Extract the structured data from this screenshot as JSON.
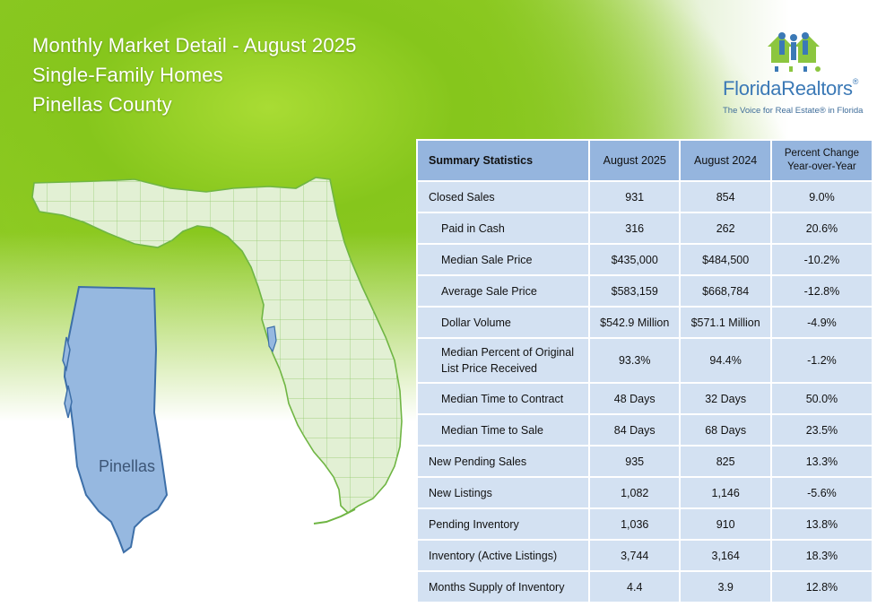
{
  "header": {
    "title_line1": "Monthly Market Detail - August 2025",
    "title_line2": "Single-Family Homes",
    "title_line3": "Pinellas County"
  },
  "logo": {
    "name_part1": "Florida",
    "name_part2": "Realtors",
    "tagline": "The Voice for Real Estate® in Florida",
    "colors": {
      "blue": "#3b79b6",
      "green": "#8cc63f"
    }
  },
  "map": {
    "county_label": "Pinellas",
    "highlight_color": "#96b8e0",
    "state_fill": "#e2f0d4",
    "state_stroke": "#6fb543"
  },
  "table": {
    "headers": {
      "metric": "Summary Statistics",
      "current": "August 2025",
      "prior": "August 2024",
      "change_line1": "Percent Change",
      "change_line2": "Year-over-Year"
    },
    "rows": [
      {
        "label": "Closed Sales",
        "current": "931",
        "prior": "854",
        "change": "9.0%"
      },
      {
        "label": "Paid in Cash",
        "current": "316",
        "prior": "262",
        "change": "20.6%"
      },
      {
        "label": "Median Sale Price",
        "current": "$435,000",
        "prior": "$484,500",
        "change": "-10.2%"
      },
      {
        "label": "Average Sale Price",
        "current": "$583,159",
        "prior": "$668,784",
        "change": "-12.8%"
      },
      {
        "label": "Dollar Volume",
        "current": "$542.9 Million",
        "prior": "$571.1 Million",
        "change": "-4.9%"
      },
      {
        "label_line1": "Median Percent of Original",
        "label_line2": "List Price Received",
        "current": "93.3%",
        "prior": "94.4%",
        "change": "-1.2%"
      },
      {
        "label": "Median Time to Contract",
        "current": "48 Days",
        "prior": "32 Days",
        "change": "50.0%"
      },
      {
        "label": "Median Time to Sale",
        "current": "84 Days",
        "prior": "68 Days",
        "change": "23.5%"
      },
      {
        "label": "New Pending Sales",
        "current": "935",
        "prior": "825",
        "change": "13.3%"
      },
      {
        "label": "New Listings",
        "current": "1,082",
        "prior": "1,146",
        "change": "-5.6%"
      },
      {
        "label": "Pending Inventory",
        "current": "1,036",
        "prior": "910",
        "change": "13.8%"
      },
      {
        "label": "Inventory (Active Listings)",
        "current": "3,744",
        "prior": "3,164",
        "change": "18.3%"
      },
      {
        "label": "Months Supply of Inventory",
        "current": "4.4",
        "prior": "3.9",
        "change": "12.8%"
      }
    ]
  }
}
